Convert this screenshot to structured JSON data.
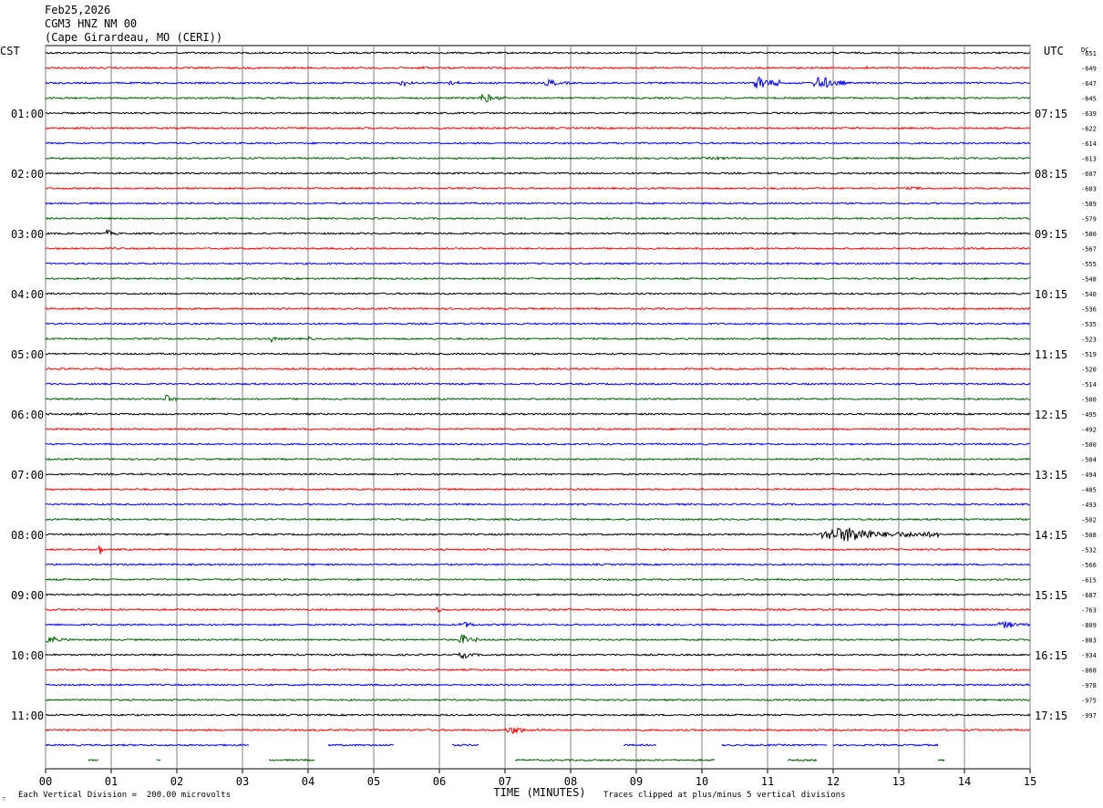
{
  "header": {
    "date": "Feb25,2026",
    "station": "CGM3 HNZ NM 00",
    "location": "(Cape Girardeau, MO (CERI))"
  },
  "left_tz": "CST",
  "right_tz": "UTC",
  "dc_label": "DC",
  "xlabel": "TIME (MINUTES)",
  "footer_left": "Each Vertical Division =  200.00 microvolts",
  "footer_right": "Traces clipped at plus/minus 5 vertical divisions",
  "corner_mark": "∵",
  "colors": {
    "trace_cycle": [
      "#000000",
      "#ff0000",
      "#0000ff",
      "#006400"
    ],
    "grid": "#808080"
  },
  "chart_data": {
    "type": "line",
    "subtype": "helicorder",
    "x_ticks": [
      "00",
      "01",
      "02",
      "03",
      "04",
      "05",
      "06",
      "07",
      "08",
      "09",
      "10",
      "11",
      "12",
      "13",
      "14",
      "15"
    ],
    "xlim": [
      0,
      15
    ],
    "rows": 48,
    "minutes_per_row": 15,
    "left_labels": [
      {
        "row": 4,
        "text": "01:00"
      },
      {
        "row": 8,
        "text": "02:00"
      },
      {
        "row": 12,
        "text": "03:00"
      },
      {
        "row": 16,
        "text": "04:00"
      },
      {
        "row": 20,
        "text": "05:00"
      },
      {
        "row": 24,
        "text": "06:00"
      },
      {
        "row": 28,
        "text": "07:00"
      },
      {
        "row": 32,
        "text": "08:00"
      },
      {
        "row": 36,
        "text": "09:00"
      },
      {
        "row": 40,
        "text": "10:00"
      },
      {
        "row": 44,
        "text": "11:00"
      }
    ],
    "right_labels": [
      {
        "row": 4,
        "text": "07:15"
      },
      {
        "row": 8,
        "text": "08:15"
      },
      {
        "row": 12,
        "text": "09:15"
      },
      {
        "row": 16,
        "text": "10:15"
      },
      {
        "row": 20,
        "text": "11:15"
      },
      {
        "row": 24,
        "text": "12:15"
      },
      {
        "row": 28,
        "text": "13:15"
      },
      {
        "row": 32,
        "text": "14:15"
      },
      {
        "row": 36,
        "text": "15:15"
      },
      {
        "row": 40,
        "text": "16:15"
      },
      {
        "row": 44,
        "text": "17:15"
      }
    ],
    "dc_offsets": [
      "-651",
      "-649",
      "-647",
      "-645",
      "-639",
      "-622",
      "-614",
      "-613",
      "-607",
      "-603",
      "-589",
      "-579",
      "-580",
      "-567",
      "-555",
      "-548",
      "-540",
      "-536",
      "-535",
      "-523",
      "-519",
      "-520",
      "-514",
      "-500",
      "-495",
      "-492",
      "-500",
      "-504",
      "-494",
      "-485",
      "-493",
      "-502",
      "-508",
      "-532",
      "-566",
      "-615",
      "-687",
      "-763",
      "-809",
      "-883",
      "-934",
      "-868",
      "-978",
      "-975",
      "-997"
    ],
    "events": [
      {
        "row": 1,
        "minute": 5.7,
        "duration": 0.3,
        "amplitude": 2
      },
      {
        "row": 1,
        "minute": 12.5,
        "duration": 0.1,
        "amplitude": 3
      },
      {
        "row": 2,
        "minute": 5.4,
        "duration": 0.2,
        "amplitude": 4
      },
      {
        "row": 2,
        "minute": 6.1,
        "duration": 0.2,
        "amplitude": 5
      },
      {
        "row": 2,
        "minute": 7.6,
        "duration": 0.4,
        "amplitude": 4
      },
      {
        "row": 2,
        "minute": 10.8,
        "duration": 0.4,
        "amplitude": 9
      },
      {
        "row": 2,
        "minute": 11.7,
        "duration": 0.5,
        "amplitude": 8
      },
      {
        "row": 3,
        "minute": 6.6,
        "duration": 0.4,
        "amplitude": 5
      },
      {
        "row": 7,
        "minute": 10.0,
        "duration": 1.2,
        "amplitude": 1.5
      },
      {
        "row": 9,
        "minute": 13.0,
        "duration": 1.0,
        "amplitude": 1.5
      },
      {
        "row": 12,
        "minute": 0.9,
        "duration": 0.2,
        "amplitude": 4
      },
      {
        "row": 19,
        "minute": 3.4,
        "duration": 0.2,
        "amplitude": 4
      },
      {
        "row": 19,
        "minute": 4.0,
        "duration": 0.1,
        "amplitude": 3
      },
      {
        "row": 23,
        "minute": 1.8,
        "duration": 0.2,
        "amplitude": 5
      },
      {
        "row": 24,
        "minute": 0.0,
        "duration": 1.5,
        "amplitude": 1.5
      },
      {
        "row": 29,
        "minute": 7.3,
        "duration": 0.5,
        "amplitude": 1.2
      },
      {
        "row": 32,
        "minute": 11.8,
        "duration": 1.8,
        "amplitude": 8
      },
      {
        "row": 33,
        "minute": 0.8,
        "duration": 0.1,
        "amplitude": 7
      },
      {
        "row": 37,
        "minute": 5.9,
        "duration": 0.3,
        "amplitude": 3
      },
      {
        "row": 38,
        "minute": 6.3,
        "duration": 0.5,
        "amplitude": 3
      },
      {
        "row": 38,
        "minute": 14.5,
        "duration": 0.6,
        "amplitude": 4
      },
      {
        "row": 39,
        "minute": 0.0,
        "duration": 0.4,
        "amplitude": 4
      },
      {
        "row": 39,
        "minute": 6.3,
        "duration": 0.3,
        "amplitude": 6
      },
      {
        "row": 40,
        "minute": 6.3,
        "duration": 0.3,
        "amplitude": 4
      },
      {
        "row": 45,
        "minute": 7.0,
        "duration": 0.6,
        "amplitude": 4
      }
    ],
    "gaps": [
      {
        "row": 46,
        "segments": [
          [
            0.0,
            3.1
          ],
          [
            4.3,
            5.3
          ],
          [
            6.2,
            6.6
          ],
          [
            8.8,
            9.3
          ],
          [
            10.3,
            11.9
          ],
          [
            12.0,
            13.6
          ]
        ]
      },
      {
        "row": 47,
        "segments": [
          [
            0.65,
            0.8
          ],
          [
            1.7,
            1.75
          ],
          [
            3.4,
            4.1
          ],
          [
            7.15,
            10.2
          ],
          [
            11.3,
            11.75
          ],
          [
            13.6,
            13.7
          ]
        ]
      }
    ]
  }
}
